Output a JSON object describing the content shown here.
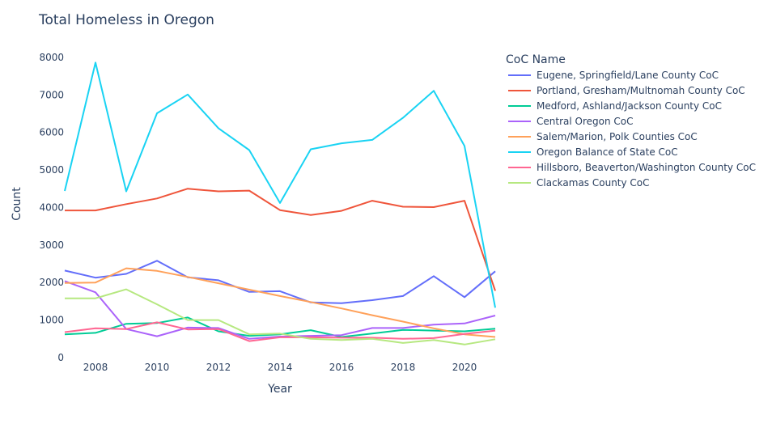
{
  "chart_data": {
    "type": "line",
    "title": "Total Homeless in Oregon",
    "xlabel": "Year",
    "ylabel": "Count",
    "xlim": [
      2007,
      2021
    ],
    "ylim": [
      0,
      8450
    ],
    "x_ticks": [
      2008,
      2010,
      2012,
      2014,
      2016,
      2018,
      2020
    ],
    "y_ticks": [
      0,
      1000,
      2000,
      3000,
      4000,
      5000,
      6000,
      7000,
      8000
    ],
    "grid": false,
    "legend_title": "CoC Name",
    "legend_position": "right",
    "x": [
      2007,
      2008,
      2009,
      2010,
      2011,
      2012,
      2013,
      2014,
      2015,
      2016,
      2017,
      2018,
      2019,
      2020,
      2021
    ],
    "series": [
      {
        "name": "Eugene, Springfield/Lane County CoC",
        "color": "#636efa",
        "values": [
          2320,
          2130,
          2230,
          2580,
          2140,
          2060,
          1750,
          1770,
          1470,
          1450,
          1530,
          1640,
          2170,
          1610,
          2300
        ]
      },
      {
        "name": "Portland, Gresham/Multnomah County CoC",
        "color": "#ef553b",
        "values": [
          3920,
          3920,
          4090,
          4240,
          4500,
          4430,
          4450,
          3930,
          3800,
          3910,
          4180,
          4020,
          4010,
          4180,
          1780
        ]
      },
      {
        "name": "Medford, Ashland/Jackson County CoC",
        "color": "#00cc96",
        "values": [
          620,
          660,
          900,
          920,
          1070,
          700,
          580,
          620,
          730,
          550,
          640,
          740,
          720,
          700,
          770
        ]
      },
      {
        "name": "Central Oregon CoC",
        "color": "#ab63fa",
        "values": [
          2040,
          1740,
          760,
          570,
          800,
          790,
          500,
          560,
          580,
          600,
          790,
          790,
          880,
          910,
          1120
        ]
      },
      {
        "name": "Salem/Marion, Polk Counties CoC",
        "color": "#ffa15a",
        "values": [
          1990,
          2000,
          2380,
          2310,
          2150,
          1980,
          1810,
          1640,
          1480,
          1310,
          1130,
          960,
          780,
          620,
          550
        ]
      },
      {
        "name": "Oregon Balance of State CoC",
        "color": "#19d3f3",
        "values": [
          4440,
          7860,
          4430,
          6510,
          7010,
          6110,
          5530,
          4120,
          5550,
          5710,
          5800,
          6390,
          7110,
          5640,
          1330
        ]
      },
      {
        "name": "Hillsboro, Beaverton/Washington County CoC",
        "color": "#ff6692",
        "values": [
          680,
          780,
          760,
          940,
          750,
          760,
          440,
          540,
          540,
          530,
          530,
          500,
          520,
          630,
          720
        ]
      },
      {
        "name": "Clackamas County CoC",
        "color": "#b6e880",
        "values": [
          1580,
          1580,
          1820,
          1420,
          1000,
          1000,
          620,
          640,
          500,
          470,
          500,
          390,
          470,
          350,
          490
        ]
      }
    ]
  }
}
